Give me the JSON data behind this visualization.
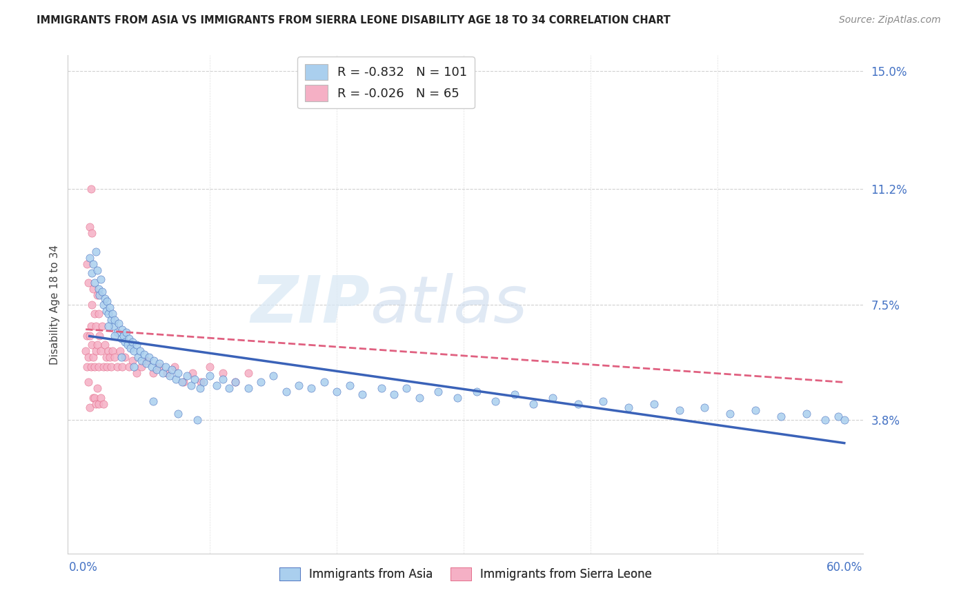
{
  "title": "IMMIGRANTS FROM ASIA VS IMMIGRANTS FROM SIERRA LEONE DISABILITY AGE 18 TO 34 CORRELATION CHART",
  "source": "Source: ZipAtlas.com",
  "ylabel": "Disability Age 18 to 34",
  "xlim": [
    0.0,
    0.6
  ],
  "ylim": [
    0.0,
    0.155
  ],
  "ytick_values": [
    0.038,
    0.075,
    0.112,
    0.15
  ],
  "ytick_labels": [
    "3.8%",
    "7.5%",
    "11.2%",
    "15.0%"
  ],
  "color_asia": "#AACFEE",
  "color_sierra": "#F5B0C5",
  "line_color_asia": "#3A62B8",
  "line_color_sierra": "#E06080",
  "R_asia": "-0.832",
  "N_asia": "101",
  "R_sierra": "-0.026",
  "N_sierra": "65",
  "legend_label_asia": "Immigrants from Asia",
  "legend_label_sierra": "Immigrants from Sierra Leone",
  "watermark_zip": "ZIP",
  "watermark_atlas": "atlas",
  "grid_color": "#d0d0d0",
  "asia_x": [
    0.005,
    0.007,
    0.008,
    0.009,
    0.01,
    0.011,
    0.012,
    0.013,
    0.014,
    0.015,
    0.016,
    0.017,
    0.018,
    0.019,
    0.02,
    0.021,
    0.022,
    0.023,
    0.024,
    0.025,
    0.027,
    0.028,
    0.03,
    0.031,
    0.032,
    0.033,
    0.034,
    0.035,
    0.036,
    0.037,
    0.039,
    0.04,
    0.042,
    0.043,
    0.045,
    0.046,
    0.048,
    0.05,
    0.052,
    0.054,
    0.056,
    0.058,
    0.06,
    0.063,
    0.065,
    0.068,
    0.07,
    0.073,
    0.075,
    0.078,
    0.082,
    0.085,
    0.088,
    0.092,
    0.095,
    0.1,
    0.105,
    0.11,
    0.115,
    0.12,
    0.13,
    0.14,
    0.15,
    0.16,
    0.17,
    0.18,
    0.19,
    0.2,
    0.21,
    0.22,
    0.235,
    0.245,
    0.255,
    0.265,
    0.28,
    0.295,
    0.31,
    0.325,
    0.34,
    0.355,
    0.37,
    0.39,
    0.41,
    0.43,
    0.45,
    0.47,
    0.49,
    0.51,
    0.53,
    0.55,
    0.57,
    0.585,
    0.595,
    0.6,
    0.03,
    0.04,
    0.02,
    0.025,
    0.055,
    0.075,
    0.09
  ],
  "asia_y": [
    0.09,
    0.085,
    0.088,
    0.082,
    0.092,
    0.086,
    0.08,
    0.078,
    0.083,
    0.079,
    0.075,
    0.077,
    0.073,
    0.076,
    0.072,
    0.074,
    0.07,
    0.072,
    0.068,
    0.07,
    0.066,
    0.069,
    0.064,
    0.067,
    0.065,
    0.063,
    0.066,
    0.062,
    0.064,
    0.061,
    0.063,
    0.06,
    0.062,
    0.058,
    0.06,
    0.057,
    0.059,
    0.056,
    0.058,
    0.055,
    0.057,
    0.054,
    0.056,
    0.053,
    0.055,
    0.052,
    0.054,
    0.051,
    0.053,
    0.05,
    0.052,
    0.049,
    0.051,
    0.048,
    0.05,
    0.052,
    0.049,
    0.051,
    0.048,
    0.05,
    0.048,
    0.05,
    0.052,
    0.047,
    0.049,
    0.048,
    0.05,
    0.047,
    0.049,
    0.046,
    0.048,
    0.046,
    0.048,
    0.045,
    0.047,
    0.045,
    0.047,
    0.044,
    0.046,
    0.043,
    0.045,
    0.043,
    0.044,
    0.042,
    0.043,
    0.041,
    0.042,
    0.04,
    0.041,
    0.039,
    0.04,
    0.038,
    0.039,
    0.038,
    0.058,
    0.055,
    0.068,
    0.065,
    0.044,
    0.04,
    0.038
  ],
  "sierra_x": [
    0.002,
    0.003,
    0.003,
    0.004,
    0.004,
    0.005,
    0.005,
    0.006,
    0.006,
    0.007,
    0.007,
    0.008,
    0.008,
    0.009,
    0.009,
    0.01,
    0.01,
    0.011,
    0.011,
    0.012,
    0.012,
    0.013,
    0.014,
    0.015,
    0.016,
    0.017,
    0.018,
    0.019,
    0.02,
    0.021,
    0.022,
    0.023,
    0.025,
    0.027,
    0.029,
    0.031,
    0.033,
    0.036,
    0.039,
    0.042,
    0.046,
    0.05,
    0.055,
    0.06,
    0.066,
    0.072,
    0.079,
    0.086,
    0.093,
    0.1,
    0.11,
    0.12,
    0.13,
    0.003,
    0.004,
    0.005,
    0.006,
    0.007,
    0.008,
    0.009,
    0.01,
    0.011,
    0.012,
    0.014,
    0.016
  ],
  "sierra_y": [
    0.06,
    0.055,
    0.065,
    0.05,
    0.058,
    0.042,
    0.065,
    0.068,
    0.055,
    0.075,
    0.062,
    0.08,
    0.058,
    0.072,
    0.055,
    0.068,
    0.06,
    0.078,
    0.062,
    0.072,
    0.055,
    0.065,
    0.06,
    0.068,
    0.055,
    0.062,
    0.058,
    0.055,
    0.06,
    0.058,
    0.055,
    0.06,
    0.058,
    0.055,
    0.06,
    0.055,
    0.058,
    0.055,
    0.057,
    0.053,
    0.055,
    0.057,
    0.053,
    0.055,
    0.053,
    0.055,
    0.05,
    0.053,
    0.05,
    0.055,
    0.053,
    0.05,
    0.053,
    0.088,
    0.082,
    0.1,
    0.112,
    0.098,
    0.045,
    0.045,
    0.043,
    0.048,
    0.043,
    0.045,
    0.043
  ],
  "sierra_line_x": [
    0.002,
    0.6
  ],
  "sierra_line_y": [
    0.065,
    0.05
  ]
}
